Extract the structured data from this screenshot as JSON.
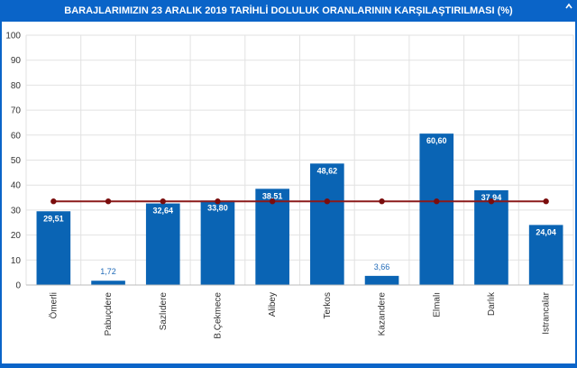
{
  "title": "BARAJLARIMIZIN 23 ARALIK 2019 TARİHLİ DOLULUK ORANLARININ KARŞILAŞTIRILMASI (%)",
  "colors": {
    "background": "#0a64c8",
    "bar": "#0a64b4",
    "line": "#8b1a1a",
    "marker": "#7a0d0d",
    "grid": "#e2e2e2",
    "outside_label": "#1f6ab8"
  },
  "chart_data": {
    "type": "bar",
    "title": "BARAJLARIMIZIN 23 ARALIK 2019 TARİHLİ DOLULUK ORANLARININ KARŞILAŞTIRILMASI (%)",
    "xlabel": "",
    "ylabel": "",
    "ylim": [
      0,
      100
    ],
    "yticks": [
      "0",
      "10",
      "20",
      "30",
      "40",
      "50",
      "60",
      "70",
      "80",
      "90",
      "100"
    ],
    "grid": true,
    "categories": [
      "Ömerli",
      "Pabuçdere",
      "Sazlıdere",
      "B.Çekmece",
      "Alibey",
      "Terkos",
      "Kazandere",
      "Elmalı",
      "Darlık",
      "Istrancalar"
    ],
    "series": [
      {
        "type": "bar",
        "values": [
          29.51,
          1.72,
          32.64,
          33.8,
          38.51,
          48.62,
          3.66,
          60.6,
          37.94,
          24.04
        ],
        "labels": [
          "29,51",
          "1,72",
          "32,64",
          "33,80",
          "38,51",
          "48,62",
          "3,66",
          "60,60",
          "37,94",
          "24,04"
        ]
      },
      {
        "type": "line",
        "values": [
          33.5,
          33.5,
          33.5,
          33.5,
          33.5,
          33.5,
          33.5,
          33.5,
          33.5,
          33.5
        ]
      }
    ]
  }
}
